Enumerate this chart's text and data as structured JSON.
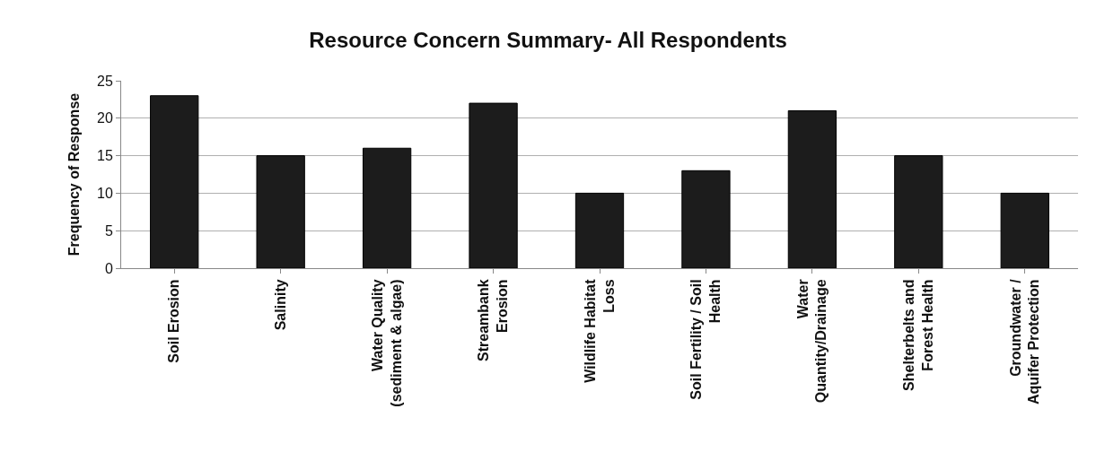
{
  "chart_data": {
    "type": "bar",
    "title": "Resource Concern Summary- All Respondents",
    "ylabel": "Frequency of Response",
    "categories": [
      "Soil Erosion",
      "Salinity",
      "Water Quality\n(sediment & algae)",
      "Streambank\nErosion",
      "Wildlife Habitat\nLoss",
      "Soil Fertility / Soil\nHealth",
      "Water\nQuantity/Drainage",
      "Shelterbelts and\nForest Health",
      "Groundwater /\nAquifer Protection"
    ],
    "values": [
      23,
      15,
      16,
      22,
      10,
      13,
      21,
      15,
      10
    ],
    "color": "#1c1c1c",
    "ylim": [
      0,
      25
    ],
    "yticks": [
      0,
      5,
      10,
      15,
      20,
      25
    ],
    "grid": "y"
  }
}
